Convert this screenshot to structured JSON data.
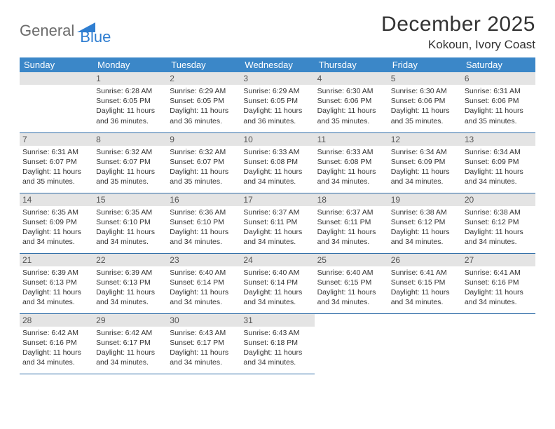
{
  "brand": {
    "part1": "General",
    "part2": "Blue"
  },
  "colors": {
    "header_bg": "#3b87c8",
    "header_text": "#ffffff",
    "daynum_bg": "#e4e4e4",
    "row_border": "#2f6da8",
    "logo_gray": "#6b6b6b",
    "logo_blue": "#2f7ed1"
  },
  "title": "December 2025",
  "location": "Kokoun, Ivory Coast",
  "weekdays": [
    "Sunday",
    "Monday",
    "Tuesday",
    "Wednesday",
    "Thursday",
    "Friday",
    "Saturday"
  ],
  "weeks": [
    [
      null,
      {
        "d": "1",
        "sr": "6:28 AM",
        "ss": "6:05 PM",
        "dl": "11 hours and 36 minutes."
      },
      {
        "d": "2",
        "sr": "6:29 AM",
        "ss": "6:05 PM",
        "dl": "11 hours and 36 minutes."
      },
      {
        "d": "3",
        "sr": "6:29 AM",
        "ss": "6:05 PM",
        "dl": "11 hours and 36 minutes."
      },
      {
        "d": "4",
        "sr": "6:30 AM",
        "ss": "6:06 PM",
        "dl": "11 hours and 35 minutes."
      },
      {
        "d": "5",
        "sr": "6:30 AM",
        "ss": "6:06 PM",
        "dl": "11 hours and 35 minutes."
      },
      {
        "d": "6",
        "sr": "6:31 AM",
        "ss": "6:06 PM",
        "dl": "11 hours and 35 minutes."
      }
    ],
    [
      {
        "d": "7",
        "sr": "6:31 AM",
        "ss": "6:07 PM",
        "dl": "11 hours and 35 minutes."
      },
      {
        "d": "8",
        "sr": "6:32 AM",
        "ss": "6:07 PM",
        "dl": "11 hours and 35 minutes."
      },
      {
        "d": "9",
        "sr": "6:32 AM",
        "ss": "6:07 PM",
        "dl": "11 hours and 35 minutes."
      },
      {
        "d": "10",
        "sr": "6:33 AM",
        "ss": "6:08 PM",
        "dl": "11 hours and 34 minutes."
      },
      {
        "d": "11",
        "sr": "6:33 AM",
        "ss": "6:08 PM",
        "dl": "11 hours and 34 minutes."
      },
      {
        "d": "12",
        "sr": "6:34 AM",
        "ss": "6:09 PM",
        "dl": "11 hours and 34 minutes."
      },
      {
        "d": "13",
        "sr": "6:34 AM",
        "ss": "6:09 PM",
        "dl": "11 hours and 34 minutes."
      }
    ],
    [
      {
        "d": "14",
        "sr": "6:35 AM",
        "ss": "6:09 PM",
        "dl": "11 hours and 34 minutes."
      },
      {
        "d": "15",
        "sr": "6:35 AM",
        "ss": "6:10 PM",
        "dl": "11 hours and 34 minutes."
      },
      {
        "d": "16",
        "sr": "6:36 AM",
        "ss": "6:10 PM",
        "dl": "11 hours and 34 minutes."
      },
      {
        "d": "17",
        "sr": "6:37 AM",
        "ss": "6:11 PM",
        "dl": "11 hours and 34 minutes."
      },
      {
        "d": "18",
        "sr": "6:37 AM",
        "ss": "6:11 PM",
        "dl": "11 hours and 34 minutes."
      },
      {
        "d": "19",
        "sr": "6:38 AM",
        "ss": "6:12 PM",
        "dl": "11 hours and 34 minutes."
      },
      {
        "d": "20",
        "sr": "6:38 AM",
        "ss": "6:12 PM",
        "dl": "11 hours and 34 minutes."
      }
    ],
    [
      {
        "d": "21",
        "sr": "6:39 AM",
        "ss": "6:13 PM",
        "dl": "11 hours and 34 minutes."
      },
      {
        "d": "22",
        "sr": "6:39 AM",
        "ss": "6:13 PM",
        "dl": "11 hours and 34 minutes."
      },
      {
        "d": "23",
        "sr": "6:40 AM",
        "ss": "6:14 PM",
        "dl": "11 hours and 34 minutes."
      },
      {
        "d": "24",
        "sr": "6:40 AM",
        "ss": "6:14 PM",
        "dl": "11 hours and 34 minutes."
      },
      {
        "d": "25",
        "sr": "6:40 AM",
        "ss": "6:15 PM",
        "dl": "11 hours and 34 minutes."
      },
      {
        "d": "26",
        "sr": "6:41 AM",
        "ss": "6:15 PM",
        "dl": "11 hours and 34 minutes."
      },
      {
        "d": "27",
        "sr": "6:41 AM",
        "ss": "6:16 PM",
        "dl": "11 hours and 34 minutes."
      }
    ],
    [
      {
        "d": "28",
        "sr": "6:42 AM",
        "ss": "6:16 PM",
        "dl": "11 hours and 34 minutes."
      },
      {
        "d": "29",
        "sr": "6:42 AM",
        "ss": "6:17 PM",
        "dl": "11 hours and 34 minutes."
      },
      {
        "d": "30",
        "sr": "6:43 AM",
        "ss": "6:17 PM",
        "dl": "11 hours and 34 minutes."
      },
      {
        "d": "31",
        "sr": "6:43 AM",
        "ss": "6:18 PM",
        "dl": "11 hours and 34 minutes."
      },
      null,
      null,
      null
    ]
  ],
  "labels": {
    "sunrise": "Sunrise:",
    "sunset": "Sunset:",
    "daylight": "Daylight:"
  }
}
